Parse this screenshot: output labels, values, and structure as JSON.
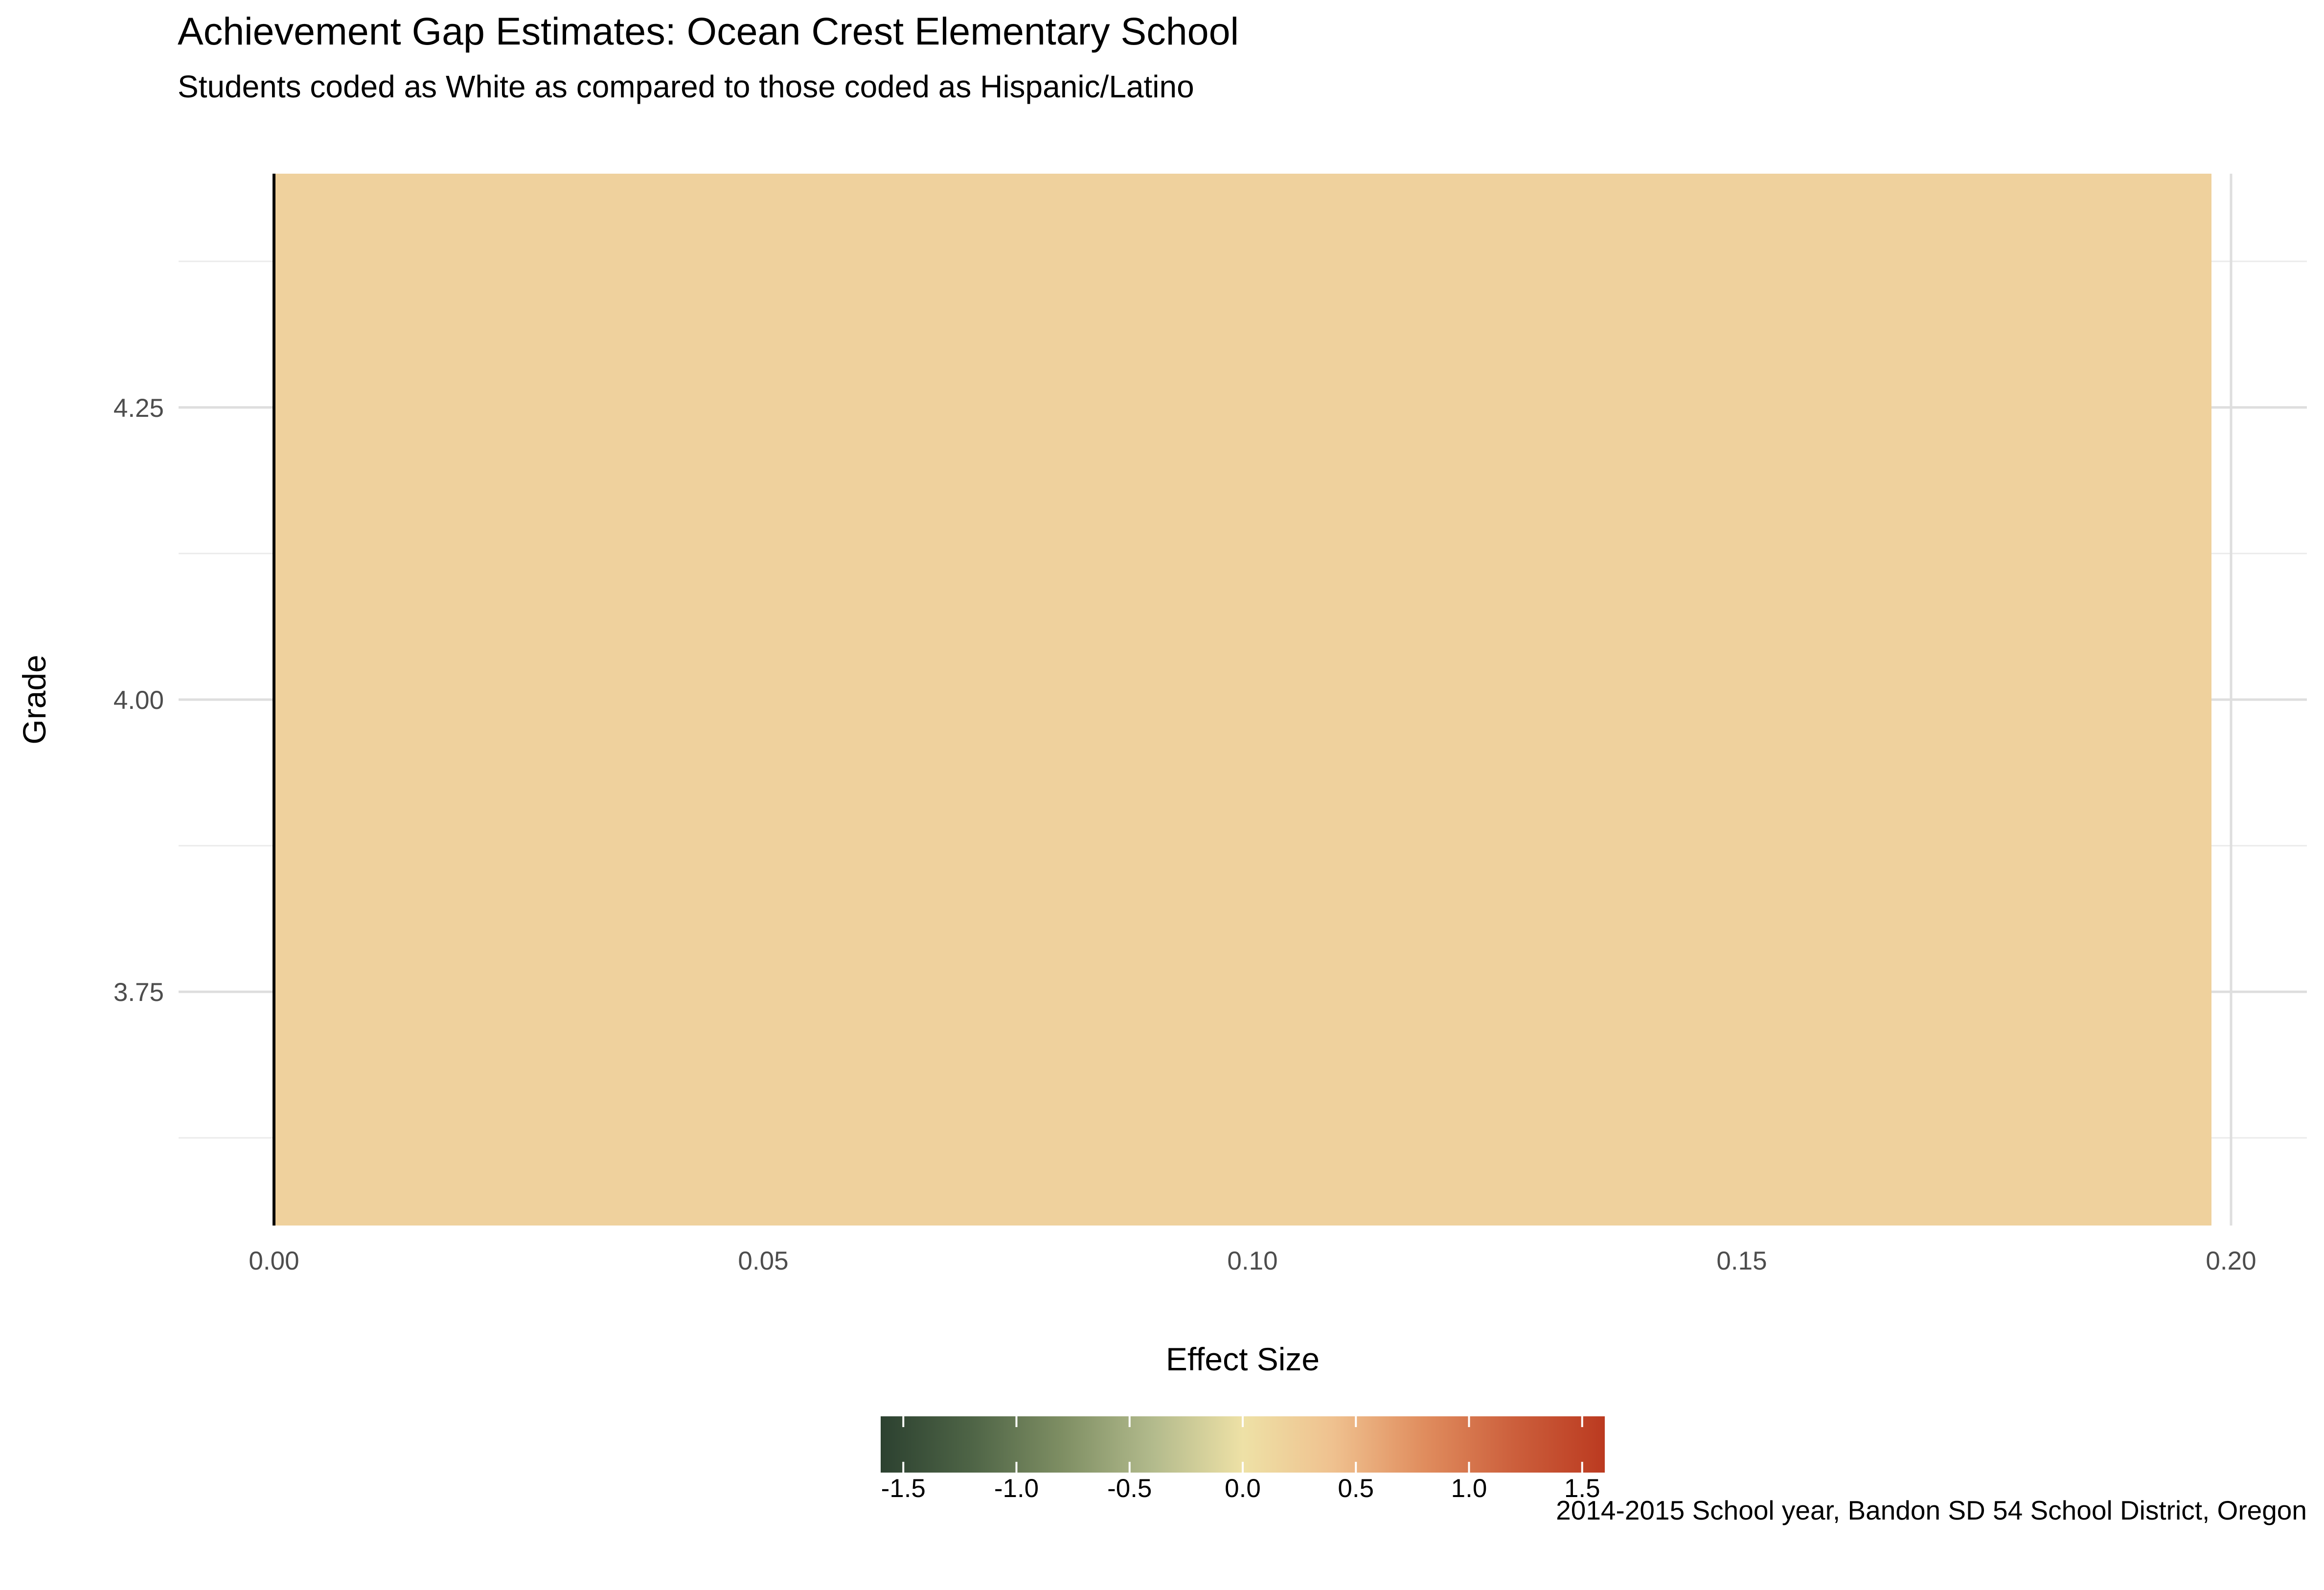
{
  "chart_data": {
    "type": "bar",
    "orientation": "horizontal",
    "title": "Achievement Gap Estimates: Ocean Crest Elementary School",
    "subtitle": "Students coded as White as compared to those coded as Hispanic/Latino",
    "caption": "2014-2015 School year, Bandon SD 54 School District, Oregon",
    "xlabel": "Effect Size",
    "ylabel": "Grade",
    "xlim": [
      0.0,
      0.2
    ],
    "ylim": [
      3.55,
      4.45
    ],
    "x_ticks": [
      "0.00",
      "0.05",
      "0.10",
      "0.15",
      "0.20"
    ],
    "y_ticks": [
      "3.75",
      "4.00",
      "4.25"
    ],
    "grid": true,
    "bars": [
      {
        "grade": 4,
        "value": 0.198,
        "fill": "#EFD19D"
      }
    ],
    "legend": {
      "type": "colorbar",
      "placement": "bottom",
      "range": [
        -1.6,
        1.6
      ],
      "ticks": [
        "-1.5",
        "-1.0",
        "-0.5",
        "0.0",
        "0.5",
        "1.0",
        "1.5"
      ],
      "colors": [
        "#2C4130",
        "#4E6446",
        "#7E8E63",
        "#B2BA8C",
        "#EEE1A6",
        "#EFC18F",
        "#E08D5E",
        "#CC5F3C",
        "#BB3A20"
      ]
    }
  }
}
